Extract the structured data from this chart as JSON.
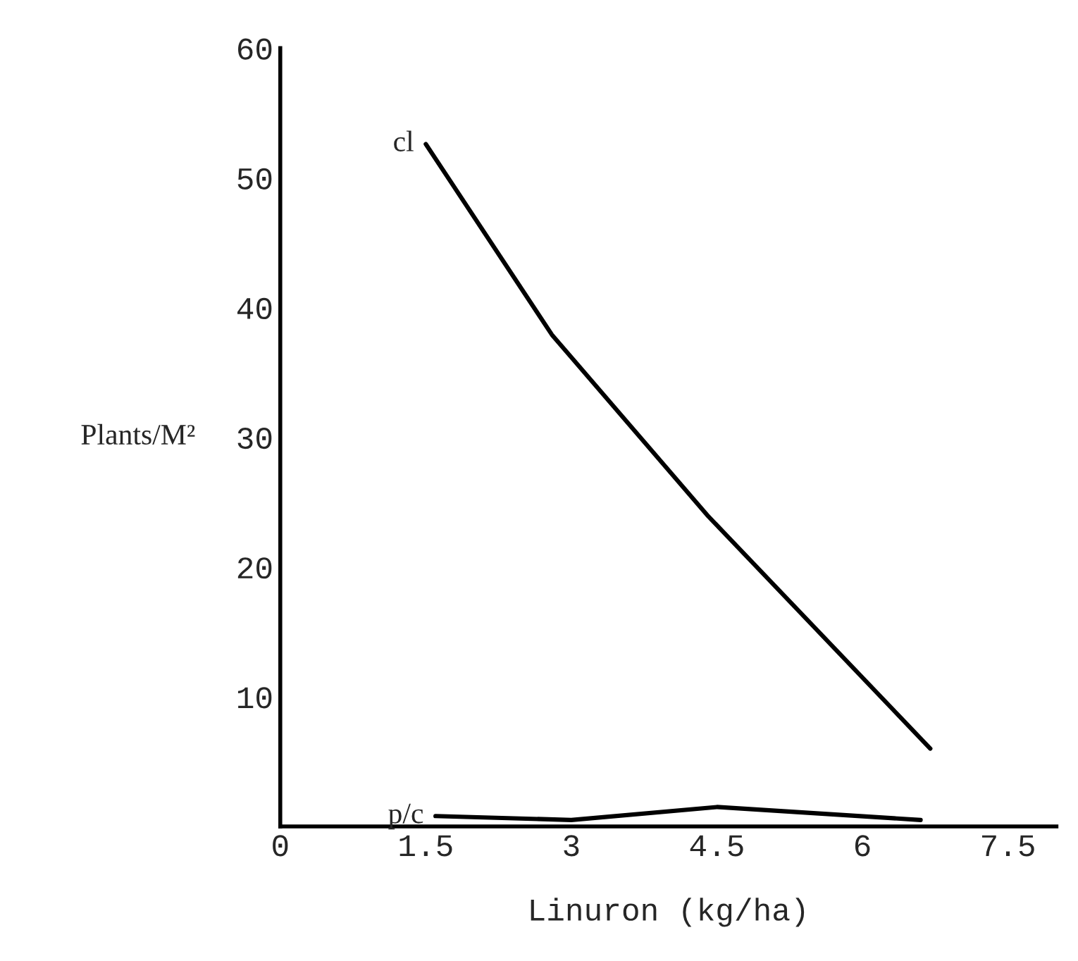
{
  "chart_data": {
    "type": "line",
    "xlabel": "Linuron (kg/ha)",
    "ylabel": "Plants/M²",
    "xlim": [
      0,
      8
    ],
    "xticks": [
      0,
      1.5,
      3,
      4.5,
      6,
      7.5
    ],
    "ylim": [
      0,
      60
    ],
    "yticks": [
      10,
      20,
      30,
      40,
      50,
      60
    ],
    "grid": false,
    "legend": false,
    "series": [
      {
        "name": "cl",
        "color": "#000000",
        "x": [
          1.5,
          2.8,
          4.4,
          6.7
        ],
        "values": [
          52.6,
          37.9,
          24,
          6
        ]
      },
      {
        "name": "p/c",
        "color": "#000000",
        "x": [
          1.6,
          3.0,
          4.5,
          6.6
        ],
        "values": [
          0.8,
          0.5,
          1.5,
          0.5
        ]
      }
    ]
  }
}
